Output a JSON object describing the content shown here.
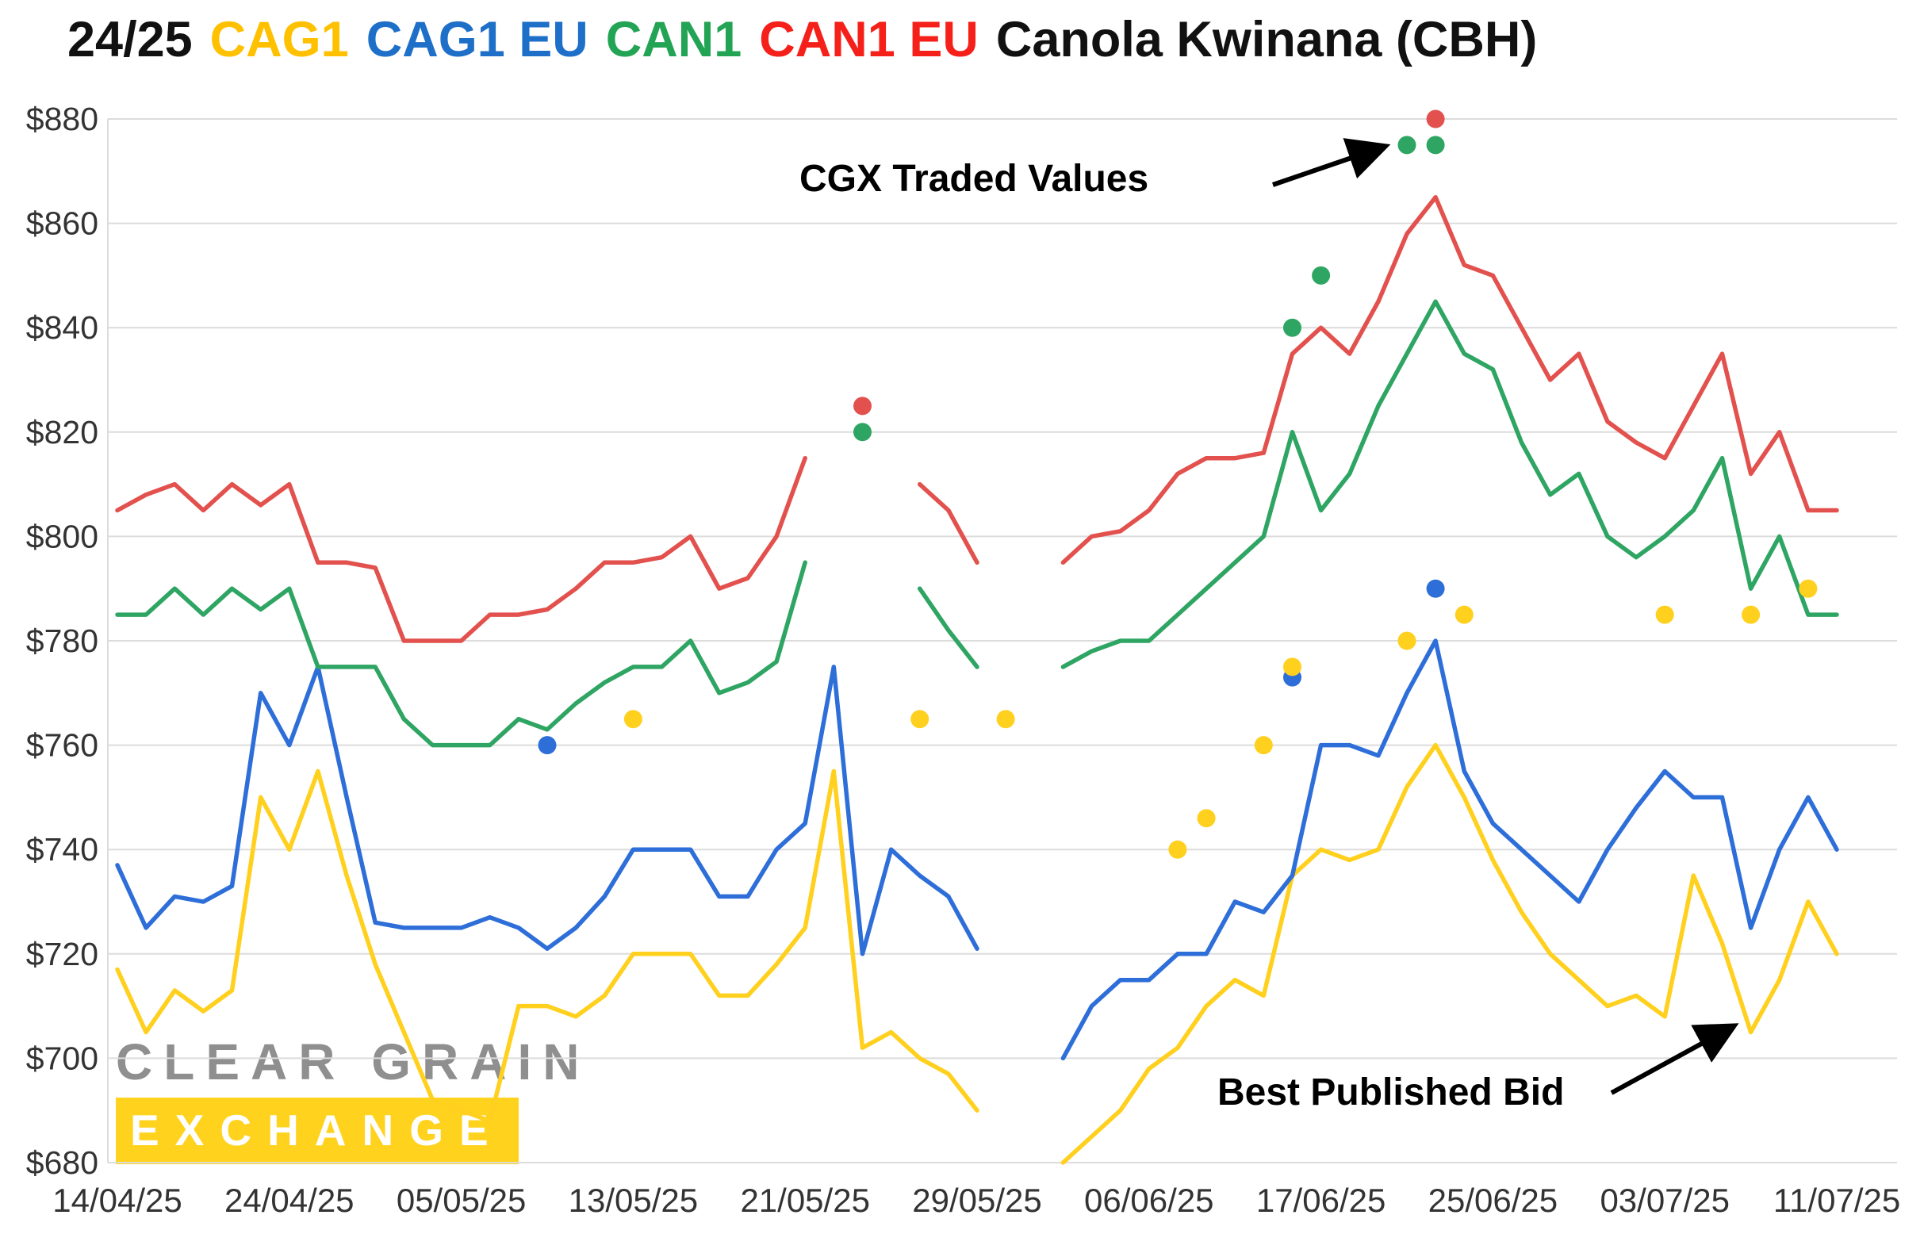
{
  "title": {
    "parts": [
      {
        "text": "24/25",
        "color": "#111111"
      },
      {
        "text": "CAG1",
        "color": "#FFC000"
      },
      {
        "text": "CAG1 EU",
        "color": "#1E6FC8"
      },
      {
        "text": "CAN1",
        "color": "#23A455"
      },
      {
        "text": "CAN1 EU",
        "color": "#F52019"
      },
      {
        "text": "Canola Kwinana (CBH)",
        "color": "#111111"
      }
    ]
  },
  "watermark": {
    "line1": "CLEAR GRAIN",
    "line2": "EXCHANGE",
    "gray": "#8F8F8F",
    "yellow": "#FFD21E",
    "white": "#FFFFFF"
  },
  "annotations": {
    "traded_values": "CGX Traded Values",
    "best_bid": "Best Published Bid"
  },
  "chart_data": {
    "type": "line",
    "title": "24/25 CAG1 CAG1 EU CAN1 CAN1 EU Canola Kwinana (CBH)",
    "ylim": [
      680,
      880
    ],
    "grid": "horizontal",
    "legend_position": "title",
    "y_ticks": [
      880,
      860,
      840,
      820,
      800,
      780,
      760,
      740,
      720,
      700,
      680
    ],
    "y_tick_labels": [
      "$880",
      "$860",
      "$840",
      "$820",
      "$800",
      "$780",
      "$760",
      "$740",
      "$720",
      "$700",
      "$680"
    ],
    "x_count": 61,
    "x_labels": [
      {
        "label": "14/04/25",
        "i": 0
      },
      {
        "label": "24/04/25",
        "i": 6
      },
      {
        "label": "05/05/25",
        "i": 12
      },
      {
        "label": "13/05/25",
        "i": 18
      },
      {
        "label": "21/05/25",
        "i": 24
      },
      {
        "label": "29/05/25",
        "i": 30
      },
      {
        "label": "06/06/25",
        "i": 36
      },
      {
        "label": "17/06/25",
        "i": 42
      },
      {
        "label": "25/06/25",
        "i": 48
      },
      {
        "label": "03/07/25",
        "i": 54
      },
      {
        "label": "11/07/25",
        "i": 60
      }
    ],
    "series": [
      {
        "name": "CAG1",
        "color": "#FFD01E",
        "values": [
          717,
          705,
          713,
          709,
          713,
          750,
          740,
          755,
          735,
          718,
          705,
          692,
          690,
          688,
          710,
          710,
          708,
          712,
          720,
          720,
          720,
          712,
          712,
          718,
          725,
          755,
          702,
          705,
          700,
          697,
          690,
          null,
          null,
          680,
          685,
          690,
          698,
          702,
          710,
          715,
          712,
          735,
          740,
          738,
          740,
          752,
          760,
          750,
          738,
          728,
          720,
          715,
          710,
          712,
          708,
          735,
          722,
          705,
          715,
          730,
          720
        ]
      },
      {
        "name": "CAG1 EU",
        "color": "#2E6ED9",
        "values": [
          737,
          725,
          731,
          730,
          733,
          770,
          760,
          775,
          750,
          726,
          725,
          725,
          725,
          727,
          725,
          721,
          725,
          731,
          740,
          740,
          740,
          731,
          731,
          740,
          745,
          775,
          720,
          740,
          735,
          731,
          721,
          null,
          null,
          700,
          710,
          715,
          715,
          720,
          720,
          730,
          728,
          735,
          760,
          760,
          758,
          770,
          780,
          755,
          745,
          740,
          735,
          730,
          740,
          748,
          755,
          750,
          750,
          725,
          740,
          750,
          740
        ]
      },
      {
        "name": "CAN1",
        "color": "#2EA563",
        "values": [
          785,
          785,
          790,
          785,
          790,
          786,
          790,
          775,
          775,
          775,
          765,
          760,
          760,
          760,
          765,
          763,
          768,
          772,
          775,
          775,
          780,
          770,
          772,
          776,
          795,
          null,
          null,
          null,
          790,
          782,
          775,
          null,
          null,
          775,
          778,
          780,
          780,
          785,
          790,
          795,
          800,
          820,
          805,
          812,
          825,
          835,
          845,
          835,
          832,
          818,
          808,
          812,
          800,
          796,
          800,
          805,
          815,
          790,
          800,
          785,
          785
        ]
      },
      {
        "name": "CAN1 EU",
        "color": "#E2514D",
        "values": [
          805,
          808,
          810,
          805,
          810,
          806,
          810,
          795,
          795,
          794,
          780,
          780,
          780,
          785,
          785,
          786,
          790,
          795,
          795,
          796,
          800,
          790,
          792,
          800,
          815,
          null,
          null,
          null,
          810,
          805,
          795,
          null,
          null,
          795,
          800,
          801,
          805,
          812,
          815,
          815,
          816,
          835,
          840,
          835,
          845,
          858,
          865,
          852,
          850,
          840,
          830,
          835,
          822,
          818,
          815,
          825,
          835,
          812,
          820,
          805,
          805
        ]
      }
    ],
    "traded_points": [
      {
        "series": "CAG1 EU",
        "i": 15,
        "value": 760
      },
      {
        "series": "CAG1",
        "i": 18,
        "value": 765
      },
      {
        "series": "CAN1 EU",
        "i": 26,
        "value": 825
      },
      {
        "series": "CAN1",
        "i": 26,
        "value": 820
      },
      {
        "series": "CAG1",
        "i": 28,
        "value": 765
      },
      {
        "series": "CAG1",
        "i": 31,
        "value": 765
      },
      {
        "series": "CAG1",
        "i": 37,
        "value": 740
      },
      {
        "series": "CAG1",
        "i": 38,
        "value": 746
      },
      {
        "series": "CAG1",
        "i": 40,
        "value": 760
      },
      {
        "series": "CAN1",
        "i": 41,
        "value": 840
      },
      {
        "series": "CAG1 EU",
        "i": 41,
        "value": 773
      },
      {
        "series": "CAG1",
        "i": 41,
        "value": 775
      },
      {
        "series": "CAN1",
        "i": 42,
        "value": 850
      },
      {
        "series": "CAG1",
        "i": 45,
        "value": 780
      },
      {
        "series": "CAN1",
        "i": 45,
        "value": 875
      },
      {
        "series": "CAN1",
        "i": 46,
        "value": 875
      },
      {
        "series": "CAN1 EU",
        "i": 46,
        "value": 880
      },
      {
        "series": "CAG1 EU",
        "i": 46,
        "value": 790
      },
      {
        "series": "CAG1",
        "i": 47,
        "value": 785
      },
      {
        "series": "CAG1",
        "i": 54,
        "value": 785
      },
      {
        "series": "CAG1",
        "i": 57,
        "value": 785
      },
      {
        "series": "CAG1",
        "i": 59,
        "value": 790
      }
    ]
  }
}
